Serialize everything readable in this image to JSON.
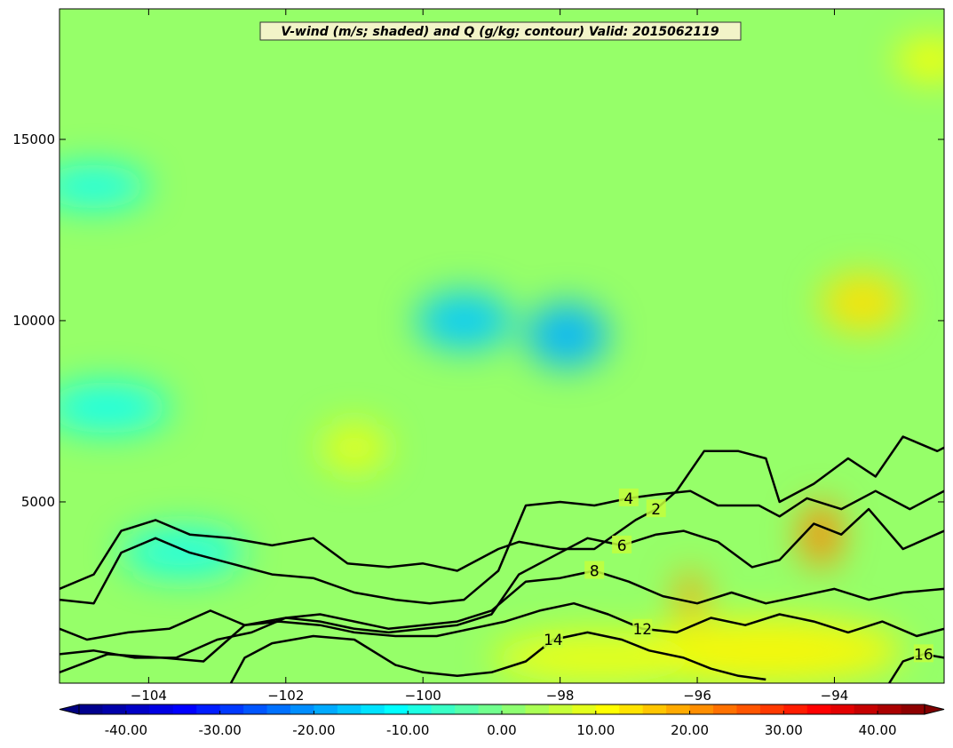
{
  "chart_data": {
    "type": "heatmap",
    "title": "V-wind (m/s; shaded) and Q (g/kg; contour) Valid: 2015062119",
    "xlabel": "",
    "ylabel": "",
    "xlim": [
      -105.3,
      -92.4
    ],
    "ylim": [
      0,
      18600
    ],
    "x_ticks": [
      -104,
      -102,
      -100,
      -98,
      -96,
      -94
    ],
    "x_tick_labels": [
      "−104",
      "−102",
      "−100",
      "−98",
      "−96",
      "−94"
    ],
    "y_ticks": [
      5000,
      10000,
      15000
    ],
    "y_tick_labels": [
      "5000",
      "10000",
      "15000"
    ],
    "colorbar": {
      "range": [
        -45,
        45
      ],
      "ticks": [
        -40,
        -30,
        -20,
        -10,
        0,
        10,
        20,
        30,
        40
      ],
      "tick_labels": [
        "-40.00",
        "-30.00",
        "-20.00",
        "-10.00",
        "0.00",
        "10.00",
        "20.00",
        "30.00",
        "40.00"
      ],
      "extend": "both",
      "colormap": "jet",
      "placement": "bottom"
    },
    "shaded_field": {
      "name": "V-wind",
      "background": 2,
      "features": [
        {
          "x": -99.4,
          "y": 10000,
          "value": -16,
          "rx": 0.7,
          "ry": 800
        },
        {
          "x": -97.9,
          "y": 9600,
          "value": -18,
          "rx": 0.6,
          "ry": 900
        },
        {
          "x": -104.8,
          "y": 13700,
          "value": -10,
          "rx": 0.8,
          "ry": 600
        },
        {
          "x": -104.6,
          "y": 7600,
          "value": -10,
          "rx": 0.9,
          "ry": 700
        },
        {
          "x": -103.5,
          "y": 3600,
          "value": -9,
          "rx": 0.9,
          "ry": 700
        },
        {
          "x": -93.6,
          "y": 10500,
          "value": 14,
          "rx": 0.6,
          "ry": 800
        },
        {
          "x": -94.2,
          "y": 4100,
          "value": 22,
          "rx": 0.3,
          "ry": 900
        },
        {
          "x": -96.1,
          "y": 2400,
          "value": 20,
          "rx": 0.2,
          "ry": 700
        },
        {
          "x": -95.0,
          "y": 900,
          "value": 12,
          "rx": 2.0,
          "ry": 900
        },
        {
          "x": -97.5,
          "y": 700,
          "value": 10,
          "rx": 1.5,
          "ry": 700
        },
        {
          "x": -101.0,
          "y": 6500,
          "value": 9,
          "rx": 0.5,
          "ry": 700
        },
        {
          "x": -92.6,
          "y": 17200,
          "value": 11,
          "rx": 0.5,
          "ry": 600
        }
      ]
    },
    "contours": [
      {
        "level": 2,
        "label": "2",
        "points": [
          [
            -105.3,
            2600
          ],
          [
            -104.8,
            3000
          ],
          [
            -104.4,
            4200
          ],
          [
            -103.9,
            4500
          ],
          [
            -103.4,
            4100
          ],
          [
            -102.8,
            4000
          ],
          [
            -102.2,
            3800
          ],
          [
            -101.6,
            4000
          ],
          [
            -101.1,
            3300
          ],
          [
            -100.5,
            3200
          ],
          [
            -100.0,
            3300
          ],
          [
            -99.5,
            3100
          ],
          [
            -98.9,
            3700
          ],
          [
            -98.6,
            3900
          ],
          [
            -98.0,
            3700
          ],
          [
            -97.5,
            3700
          ],
          [
            -96.9,
            4500
          ],
          [
            -96.6,
            4800
          ],
          [
            -96.3,
            5300
          ],
          [
            -95.9,
            6400
          ],
          [
            -95.4,
            6400
          ],
          [
            -95.0,
            6200
          ],
          [
            -94.8,
            5000
          ],
          [
            -94.3,
            5500
          ],
          [
            -93.8,
            6200
          ],
          [
            -93.4,
            5700
          ],
          [
            -93.0,
            6800
          ],
          [
            -92.5,
            6400
          ],
          [
            -92.4,
            6500
          ]
        ]
      },
      {
        "level": 4,
        "label": "4",
        "points": [
          [
            -105.3,
            2300
          ],
          [
            -104.8,
            2200
          ],
          [
            -104.4,
            3600
          ],
          [
            -103.9,
            4000
          ],
          [
            -103.4,
            3600
          ],
          [
            -102.8,
            3300
          ],
          [
            -102.2,
            3000
          ],
          [
            -101.6,
            2900
          ],
          [
            -101.0,
            2500
          ],
          [
            -100.4,
            2300
          ],
          [
            -99.9,
            2200
          ],
          [
            -99.4,
            2300
          ],
          [
            -98.9,
            3100
          ],
          [
            -98.5,
            4900
          ],
          [
            -98.0,
            5000
          ],
          [
            -97.5,
            4900
          ],
          [
            -97.0,
            5100
          ],
          [
            -96.6,
            5200
          ],
          [
            -96.1,
            5300
          ],
          [
            -95.7,
            4900
          ],
          [
            -95.1,
            4900
          ],
          [
            -94.8,
            4600
          ],
          [
            -94.4,
            5100
          ],
          [
            -93.9,
            4800
          ],
          [
            -93.4,
            5300
          ],
          [
            -92.9,
            4800
          ],
          [
            -92.4,
            5300
          ]
        ]
      },
      {
        "level": 6,
        "label": "6",
        "points": [
          [
            -105.3,
            1500
          ],
          [
            -104.9,
            1200
          ],
          [
            -104.3,
            1400
          ],
          [
            -103.7,
            1500
          ],
          [
            -103.1,
            2000
          ],
          [
            -102.6,
            1600
          ],
          [
            -102.0,
            1800
          ],
          [
            -101.5,
            1700
          ],
          [
            -101.0,
            1500
          ],
          [
            -100.5,
            1400
          ],
          [
            -100.0,
            1500
          ],
          [
            -99.5,
            1600
          ],
          [
            -99.0,
            1900
          ],
          [
            -98.6,
            3000
          ],
          [
            -98.1,
            3500
          ],
          [
            -97.6,
            4000
          ],
          [
            -97.1,
            3800
          ],
          [
            -96.6,
            4100
          ],
          [
            -96.2,
            4200
          ],
          [
            -95.7,
            3900
          ],
          [
            -95.2,
            3200
          ],
          [
            -94.8,
            3400
          ],
          [
            -94.3,
            4400
          ],
          [
            -93.9,
            4100
          ],
          [
            -93.5,
            4800
          ],
          [
            -93.0,
            3700
          ],
          [
            -92.4,
            4200
          ]
        ]
      },
      {
        "level": 8,
        "label": "8",
        "points": [
          [
            -105.3,
            800
          ],
          [
            -104.8,
            900
          ],
          [
            -104.2,
            700
          ],
          [
            -103.6,
            700
          ],
          [
            -103.0,
            1200
          ],
          [
            -102.5,
            1400
          ],
          [
            -102.0,
            1800
          ],
          [
            -101.5,
            1900
          ],
          [
            -101.0,
            1700
          ],
          [
            -100.5,
            1500
          ],
          [
            -100.0,
            1600
          ],
          [
            -99.5,
            1700
          ],
          [
            -99.0,
            2000
          ],
          [
            -98.5,
            2800
          ],
          [
            -98.0,
            2900
          ],
          [
            -97.5,
            3100
          ],
          [
            -97.0,
            2800
          ],
          [
            -96.5,
            2400
          ],
          [
            -96.0,
            2200
          ],
          [
            -95.5,
            2500
          ],
          [
            -95.0,
            2200
          ],
          [
            -94.5,
            2400
          ],
          [
            -94.0,
            2600
          ],
          [
            -93.5,
            2300
          ],
          [
            -93.0,
            2500
          ],
          [
            -92.4,
            2600
          ]
        ]
      },
      {
        "level": 12,
        "label": "12",
        "points": [
          [
            -105.3,
            300
          ],
          [
            -104.6,
            800
          ],
          [
            -103.8,
            700
          ],
          [
            -103.2,
            600
          ],
          [
            -102.6,
            1600
          ],
          [
            -102.1,
            1700
          ],
          [
            -101.5,
            1600
          ],
          [
            -101.0,
            1400
          ],
          [
            -100.4,
            1300
          ],
          [
            -99.8,
            1300
          ],
          [
            -99.3,
            1500
          ],
          [
            -98.8,
            1700
          ],
          [
            -98.3,
            2000
          ],
          [
            -97.8,
            2200
          ],
          [
            -97.3,
            1900
          ],
          [
            -96.8,
            1500
          ],
          [
            -96.3,
            1400
          ],
          [
            -95.8,
            1800
          ],
          [
            -95.3,
            1600
          ],
          [
            -94.8,
            1900
          ],
          [
            -94.3,
            1700
          ],
          [
            -93.8,
            1400
          ],
          [
            -93.3,
            1700
          ],
          [
            -92.8,
            1300
          ],
          [
            -92.4,
            1500
          ]
        ]
      },
      {
        "level": 14,
        "label": "14",
        "points": [
          [
            -102.8,
            0
          ],
          [
            -102.6,
            700
          ],
          [
            -102.2,
            1100
          ],
          [
            -101.6,
            1300
          ],
          [
            -101.0,
            1200
          ],
          [
            -100.4,
            500
          ],
          [
            -100.0,
            300
          ],
          [
            -99.5,
            200
          ],
          [
            -99.0,
            300
          ],
          [
            -98.5,
            600
          ],
          [
            -98.1,
            1200
          ],
          [
            -97.6,
            1400
          ],
          [
            -97.1,
            1200
          ],
          [
            -96.7,
            900
          ],
          [
            -96.2,
            700
          ],
          [
            -95.8,
            400
          ],
          [
            -95.4,
            200
          ],
          [
            -95.0,
            100
          ]
        ]
      },
      {
        "level": 16,
        "label": "16",
        "points": [
          [
            -93.2,
            0
          ],
          [
            -93.0,
            600
          ],
          [
            -92.7,
            800
          ],
          [
            -92.4,
            700
          ]
        ]
      }
    ]
  }
}
